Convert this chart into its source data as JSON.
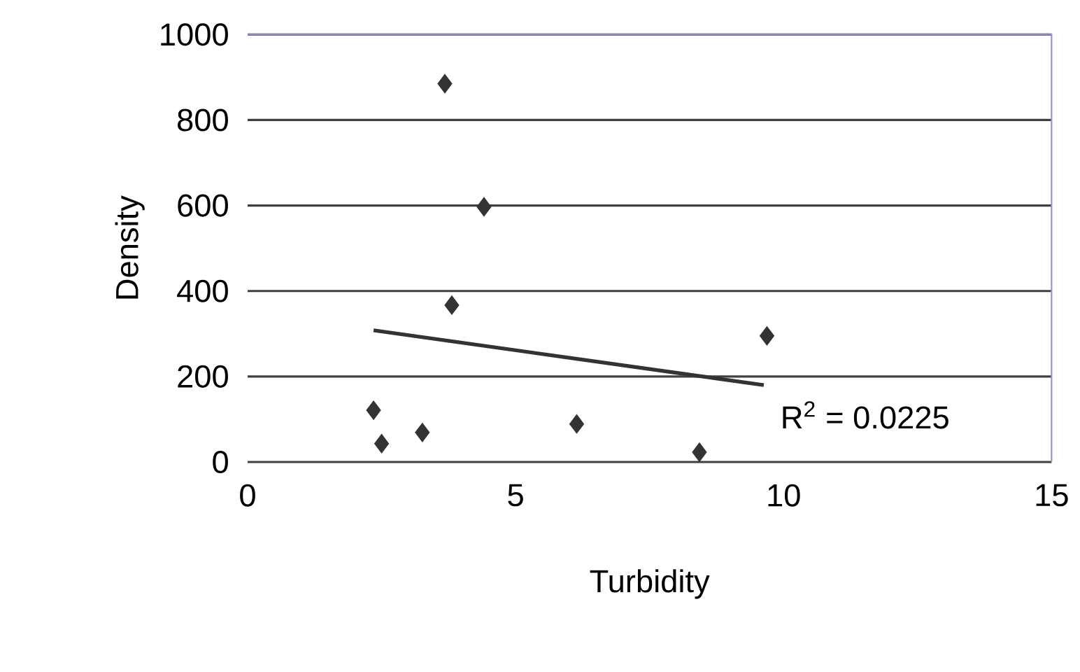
{
  "chart_data": {
    "type": "scatter",
    "xlabel": "Turbidity",
    "ylabel": "Density",
    "xlim": [
      0,
      15
    ],
    "xticks": [
      0,
      5,
      10,
      15
    ],
    "ylim": [
      0,
      1000
    ],
    "yticks": [
      0,
      200,
      400,
      600,
      800,
      1000
    ],
    "grid": "y",
    "marker": "diamond",
    "series": [
      {
        "x": [
          3.68,
          4.41,
          3.81,
          9.69,
          2.35,
          2.5,
          3.26,
          6.14,
          8.43
        ],
        "values": [
          885,
          597,
          367,
          295,
          121,
          43,
          69,
          89,
          23
        ],
        "color": "#333333"
      },
      {
        "type": "line",
        "x": [
          2.35,
          9.63
        ],
        "values": [
          308,
          180
        ],
        "color": "#333333",
        "marker": "none"
      }
    ],
    "annotations": [
      "R$^{2}$ = 0.0225"
    ]
  }
}
